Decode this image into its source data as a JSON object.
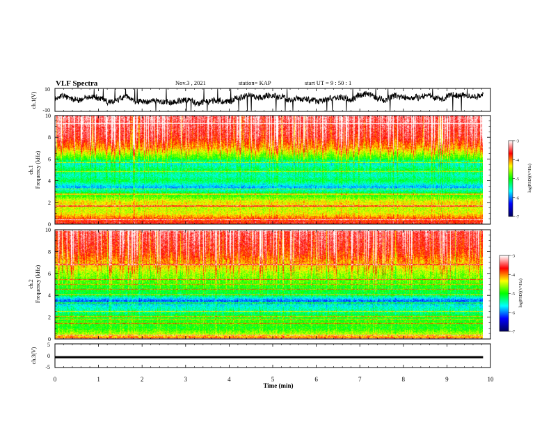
{
  "header": {
    "title": "VLF Spectra",
    "date": "Nov.3  , 2021",
    "station": "station= KAP",
    "start": "start  UT =   9  : 50 : 1"
  },
  "chart_data": [
    {
      "type": "line",
      "panel": "ch1-waveform",
      "ylabel": "ch.1(V)",
      "ylim": [
        -10,
        10
      ],
      "yticks": [
        "10",
        "-10"
      ],
      "x_range_min": [
        0,
        9.83
      ],
      "series_color": "#000000",
      "trace_summary": "noisy waveform around +1 V, amplitude mostly within -5..+8 V with spikes to the limits"
    },
    {
      "type": "heatmap",
      "panel": "ch1-spectrogram",
      "ylabel": "ch.1\nFrequency (kHz)",
      "ylim": [
        0,
        10
      ],
      "yticks": [
        "0",
        "2",
        "4",
        "6",
        "8",
        "10"
      ],
      "xlim": [
        0,
        10
      ],
      "data_extent_min": 9.83,
      "colorbar": {
        "label": "log(PSD)(V²/Hz)",
        "range": [
          -7,
          -3
        ],
        "ticks": [
          "-3",
          "-4",
          "-5",
          "-6",
          "-7"
        ],
        "colors": [
          "#000060",
          "#0000ff",
          "#00ffff",
          "#00ff00",
          "#ffff00",
          "#ff0000",
          "#ffffff"
        ]
      },
      "band_levels": [
        {
          "f": 0.0,
          "v": -3.6
        },
        {
          "f": 0.5,
          "v": -3.9
        },
        {
          "f": 1.0,
          "v": -4.4
        },
        {
          "f": 1.5,
          "v": -4.5
        },
        {
          "f": 2.0,
          "v": -4.3
        },
        {
          "f": 2.5,
          "v": -4.8
        },
        {
          "f": 3.0,
          "v": -5.3
        },
        {
          "f": 3.4,
          "v": -5.9
        },
        {
          "f": 4.0,
          "v": -5.2
        },
        {
          "f": 4.5,
          "v": -5.5
        },
        {
          "f": 5.0,
          "v": -5.2
        },
        {
          "f": 5.6,
          "v": -5.6
        },
        {
          "f": 6.0,
          "v": -5.0
        },
        {
          "f": 7.0,
          "v": -4.1
        },
        {
          "f": 8.0,
          "v": -3.6
        },
        {
          "f": 10.0,
          "v": -3.3
        }
      ]
    },
    {
      "type": "heatmap",
      "panel": "ch2-spectrogram",
      "ylabel": "ch.2\nFrequency (kHz)",
      "ylim": [
        0,
        10
      ],
      "yticks": [
        "0",
        "2",
        "4",
        "6",
        "8",
        "10"
      ],
      "xlim": [
        0,
        10
      ],
      "data_extent_min": 9.83,
      "colorbar": {
        "label": "log(PSD)(V²/Hz)",
        "range": [
          -7,
          -3
        ],
        "ticks": [
          "-3",
          "-4",
          "-5",
          "-6",
          "-7"
        ],
        "colors": [
          "#000060",
          "#0000ff",
          "#00ffff",
          "#00ff00",
          "#ffff00",
          "#ff0000",
          "#ffffff"
        ]
      },
      "band_levels": [
        {
          "f": 0.0,
          "v": -3.8
        },
        {
          "f": 0.5,
          "v": -4.6
        },
        {
          "f": 1.0,
          "v": -5.0
        },
        {
          "f": 1.5,
          "v": -4.9
        },
        {
          "f": 2.0,
          "v": -5.0
        },
        {
          "f": 2.5,
          "v": -5.4
        },
        {
          "f": 3.0,
          "v": -5.6
        },
        {
          "f": 3.5,
          "v": -6.1
        },
        {
          "f": 4.0,
          "v": -5.2
        },
        {
          "f": 5.0,
          "v": -4.9
        },
        {
          "f": 6.0,
          "v": -4.6
        },
        {
          "f": 7.0,
          "v": -4.1
        },
        {
          "f": 8.0,
          "v": -3.7
        },
        {
          "f": 10.0,
          "v": -3.4
        }
      ]
    },
    {
      "type": "line",
      "panel": "ch3-waveform",
      "ylabel": "ch.3(V)",
      "ylim": [
        -5,
        5
      ],
      "yticks": [
        "5",
        "0",
        "-5"
      ],
      "value_V": [
        -0.9,
        -0.2
      ],
      "series_color": "#000000"
    }
  ],
  "xaxis": {
    "xlabel": "Time (min)",
    "ticks": [
      "0",
      "1",
      "2",
      "3",
      "4",
      "5",
      "6",
      "7",
      "8",
      "9",
      "10"
    ],
    "xlim": [
      0,
      10
    ]
  }
}
